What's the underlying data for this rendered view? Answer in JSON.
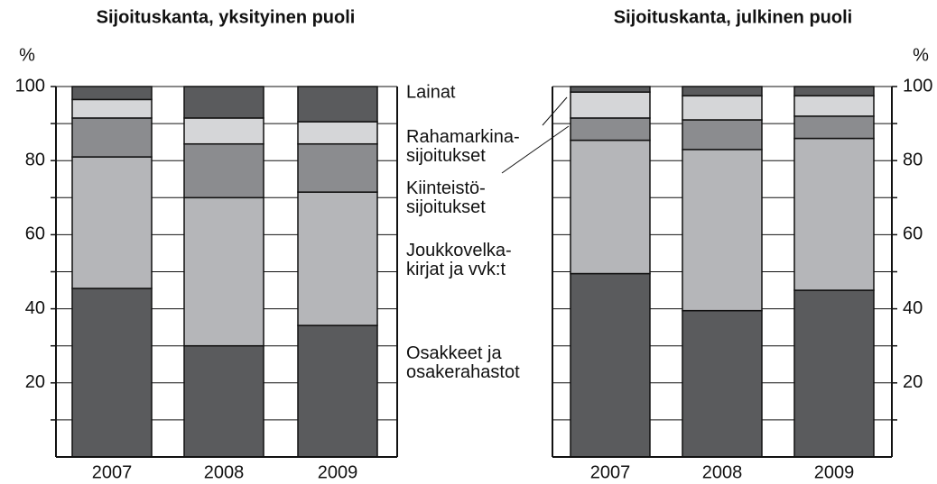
{
  "chart_data": [
    {
      "type": "stacked_bar",
      "title": "Sijoituskanta, yksityinen puoli",
      "y_label": "%",
      "categories": [
        "2007",
        "2008",
        "2009"
      ],
      "ylim": [
        0,
        100
      ],
      "yticks": [
        20,
        40,
        60,
        80,
        100
      ],
      "minor_yticks": [
        10,
        30,
        50,
        70,
        90
      ],
      "grid": true,
      "axis_side": "left",
      "series": [
        {
          "name": "Osakkeet ja\nosakerahastot",
          "color": "#5a5b5d",
          "values": [
            45.5,
            30,
            35.5
          ]
        },
        {
          "name": "Joukkovelka-\nkirjat ja vvk:t",
          "color": "#b5b6b9",
          "values": [
            35.5,
            40,
            36
          ]
        },
        {
          "name": "Kiinteistö-\nsijoitukset",
          "color": "#8b8c8f",
          "values": [
            10.5,
            14.5,
            13
          ]
        },
        {
          "name": "Rahamarkina-\nsijoitukset",
          "color": "#d5d6d8",
          "values": [
            5,
            7,
            6
          ]
        },
        {
          "name": "Lainat",
          "color": "#5a5b5d",
          "values": [
            3.5,
            8.5,
            9.5
          ]
        }
      ]
    },
    {
      "type": "stacked_bar",
      "title": "Sijoituskanta, julkinen puoli",
      "y_label": "%",
      "categories": [
        "2007",
        "2008",
        "2009"
      ],
      "ylim": [
        0,
        100
      ],
      "yticks": [
        20,
        40,
        60,
        80,
        100
      ],
      "minor_yticks": [
        10,
        30,
        50,
        70,
        90
      ],
      "grid": true,
      "axis_side": "right",
      "series": [
        {
          "color": "#5a5b5d",
          "values": [
            49.5,
            39.5,
            45
          ]
        },
        {
          "color": "#b5b6b9",
          "values": [
            36,
            43.5,
            41
          ]
        },
        {
          "color": "#8b8c8f",
          "values": [
            6,
            8,
            6
          ]
        },
        {
          "color": "#d5d6d8",
          "values": [
            7,
            6.5,
            5.5
          ]
        },
        {
          "color": "#5a5b5d",
          "values": [
            1.5,
            2.5,
            2.5
          ]
        }
      ]
    }
  ]
}
